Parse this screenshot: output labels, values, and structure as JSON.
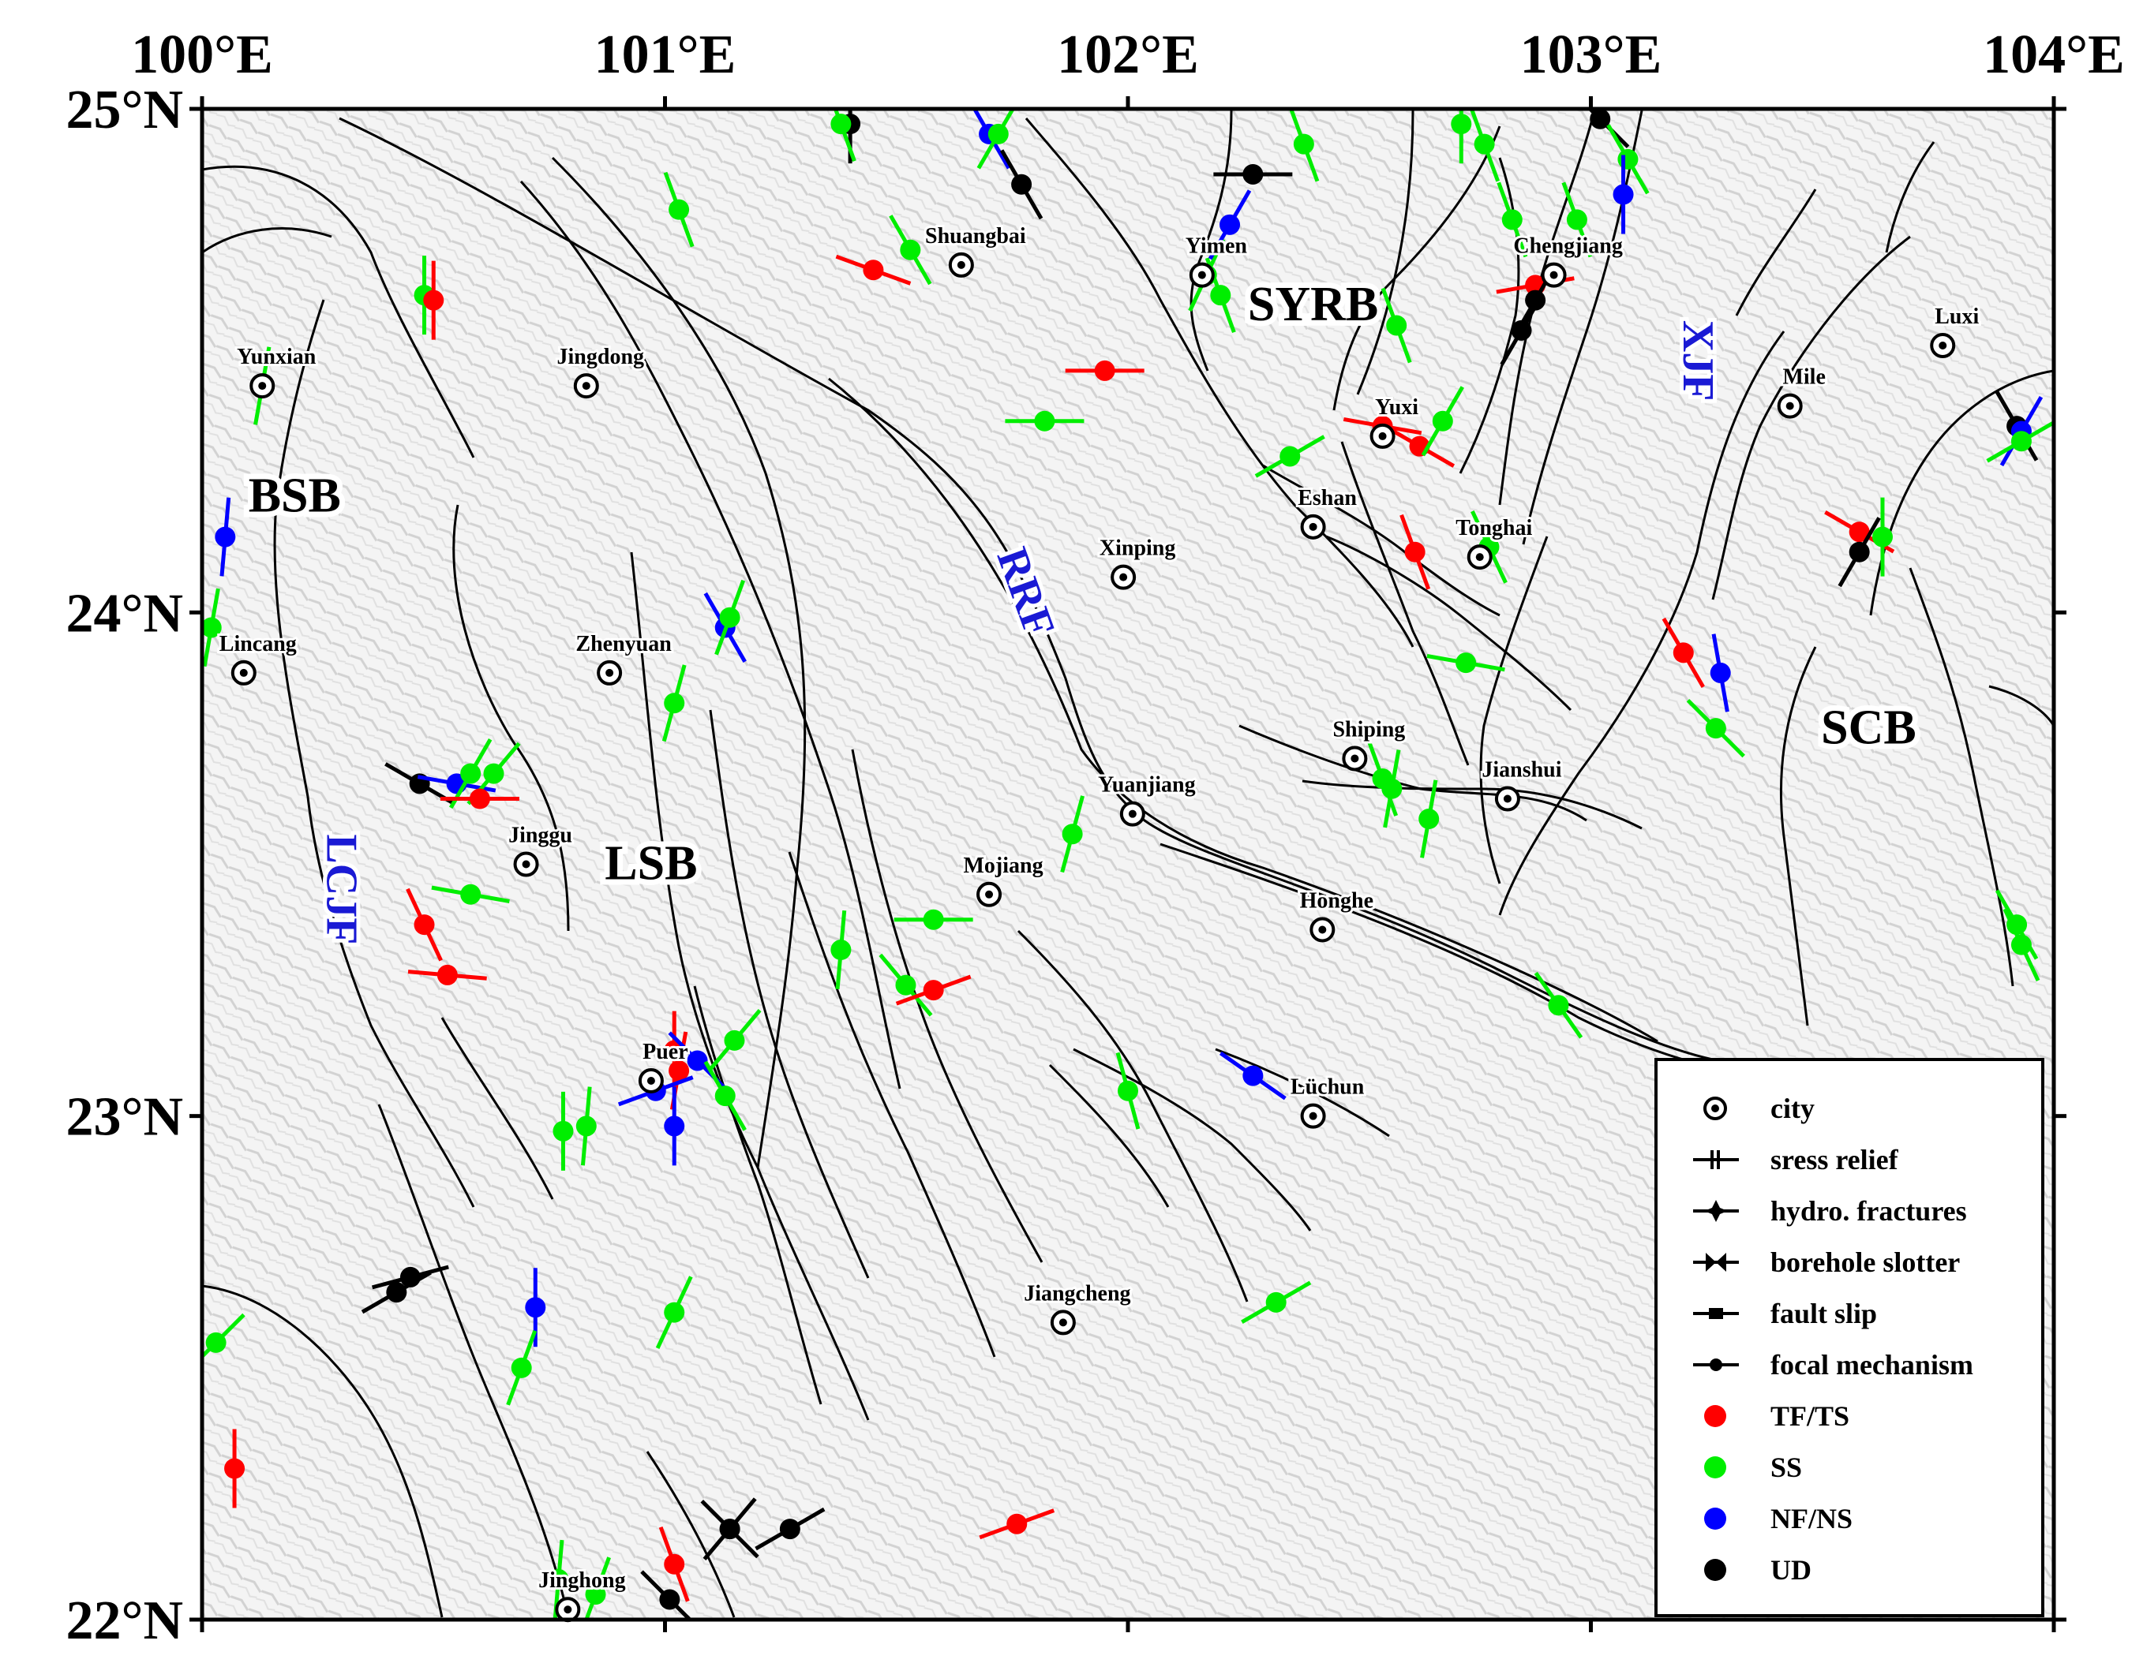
{
  "axes": {
    "x_ticks": [
      {
        "lon": 100,
        "label": "100°E"
      },
      {
        "lon": 101,
        "label": "101°E"
      },
      {
        "lon": 102,
        "label": "102°E"
      },
      {
        "lon": 103,
        "label": "103°E"
      },
      {
        "lon": 104,
        "label": "104°E"
      }
    ],
    "y_ticks": [
      {
        "lat": 25,
        "label": "25°N"
      },
      {
        "lat": 24,
        "label": "24°N"
      },
      {
        "lat": 23,
        "label": "23°N"
      },
      {
        "lat": 22,
        "label": "22°N"
      }
    ],
    "lon_range": [
      100,
      104
    ],
    "lat_range": [
      22,
      25
    ]
  },
  "cities": [
    {
      "name": "Shuangbai",
      "lon": 101.64,
      "lat": 24.69
    },
    {
      "name": "Yimen",
      "lon": 102.16,
      "lat": 24.67
    },
    {
      "name": "Chengjiang",
      "lon": 102.92,
      "lat": 24.67
    },
    {
      "name": "Yunxian",
      "lon": 100.13,
      "lat": 24.45
    },
    {
      "name": "Jingdong",
      "lon": 100.83,
      "lat": 24.45
    },
    {
      "name": "Luxi",
      "lon": 103.76,
      "lat": 24.53
    },
    {
      "name": "Mile",
      "lon": 103.43,
      "lat": 24.41
    },
    {
      "name": "Yuxi",
      "lon": 102.55,
      "lat": 24.35
    },
    {
      "name": "Eshan",
      "lon": 102.4,
      "lat": 24.17
    },
    {
      "name": "Tonghai",
      "lon": 102.76,
      "lat": 24.11
    },
    {
      "name": "Xinping",
      "lon": 101.99,
      "lat": 24.07
    },
    {
      "name": "Lincang",
      "lon": 100.09,
      "lat": 23.88
    },
    {
      "name": "Zhenyuan",
      "lon": 100.88,
      "lat": 23.88
    },
    {
      "name": "Shiping",
      "lon": 102.49,
      "lat": 23.71
    },
    {
      "name": "Jianshui",
      "lon": 102.82,
      "lat": 23.63
    },
    {
      "name": "Yuanjiang",
      "lon": 102.01,
      "lat": 23.6
    },
    {
      "name": "Jinggu",
      "lon": 100.7,
      "lat": 23.5
    },
    {
      "name": "Mojiang",
      "lon": 101.7,
      "lat": 23.44
    },
    {
      "name": "Honghe",
      "lon": 102.42,
      "lat": 23.37
    },
    {
      "name": "Puer",
      "lon": 100.97,
      "lat": 23.07
    },
    {
      "name": "Lüchun",
      "lon": 102.4,
      "lat": 23.0
    },
    {
      "name": "Jiangcheng",
      "lon": 101.86,
      "lat": 22.59
    },
    {
      "name": "Jinghong",
      "lon": 100.79,
      "lat": 22.02
    }
  ],
  "regions": [
    {
      "name": "SYRB",
      "lon": 102.4,
      "lat": 24.58
    },
    {
      "name": "BSB",
      "lon": 100.2,
      "lat": 24.2
    },
    {
      "name": "LSB",
      "lon": 100.97,
      "lat": 23.47
    },
    {
      "name": "SCB",
      "lon": 103.6,
      "lat": 23.74
    }
  ],
  "fault_labels": [
    {
      "name": "XJF",
      "lon": 103.2,
      "lat": 24.5,
      "angle": 90
    },
    {
      "name": "RRF",
      "lon": 101.75,
      "lat": 24.03,
      "angle": 70
    },
    {
      "name": "LCJF",
      "lon": 100.27,
      "lat": 23.45,
      "angle": 90
    }
  ],
  "colors": {
    "TF/TS": "#ff0000",
    "SS": "#00ee00",
    "NF/NS": "#0000ff",
    "UD": "#000000"
  },
  "stress_symbols": [
    {
      "lon": 100.13,
      "lat": 24.45,
      "az": 10,
      "type": "SS"
    },
    {
      "lon": 100.05,
      "lat": 24.15,
      "az": 5,
      "type": "NF/NS"
    },
    {
      "lon": 100.02,
      "lat": 23.97,
      "az": 10,
      "type": "SS"
    },
    {
      "lon": 100.03,
      "lat": 22.55,
      "az": 45,
      "type": "SS"
    },
    {
      "lon": 100.07,
      "lat": 22.3,
      "az": 0,
      "type": "TF/TS"
    },
    {
      "lon": 100.48,
      "lat": 24.63,
      "az": 0,
      "type": "SS"
    },
    {
      "lon": 100.5,
      "lat": 24.62,
      "az": 0,
      "type": "TF/TS"
    },
    {
      "lon": 100.47,
      "lat": 23.66,
      "az": 120,
      "type": "UD"
    },
    {
      "lon": 100.55,
      "lat": 23.66,
      "az": 100,
      "type": "NF/NS"
    },
    {
      "lon": 100.58,
      "lat": 23.68,
      "az": 30,
      "type": "SS"
    },
    {
      "lon": 100.63,
      "lat": 23.68,
      "az": 40,
      "type": "SS"
    },
    {
      "lon": 100.6,
      "lat": 23.63,
      "az": 90,
      "type": "TF/TS"
    },
    {
      "lon": 100.58,
      "lat": 23.44,
      "az": 100,
      "type": "SS"
    },
    {
      "lon": 100.48,
      "lat": 23.38,
      "az": 155,
      "type": "TF/TS"
    },
    {
      "lon": 100.53,
      "lat": 23.28,
      "az": 95,
      "type": "TF/TS"
    },
    {
      "lon": 100.42,
      "lat": 22.65,
      "az": 60,
      "type": "UD"
    },
    {
      "lon": 100.45,
      "lat": 22.68,
      "az": 75,
      "type": "UD"
    },
    {
      "lon": 100.72,
      "lat": 22.62,
      "az": 0,
      "type": "NF/NS"
    },
    {
      "lon": 100.69,
      "lat": 22.5,
      "az": 20,
      "type": "SS"
    },
    {
      "lon": 100.78,
      "lat": 22.97,
      "az": 0,
      "type": "SS"
    },
    {
      "lon": 100.83,
      "lat": 22.98,
      "az": 5,
      "type": "SS"
    },
    {
      "lon": 100.77,
      "lat": 22.08,
      "az": 5,
      "type": "SS"
    },
    {
      "lon": 100.85,
      "lat": 22.05,
      "az": 20,
      "type": "SS"
    },
    {
      "lon": 101.03,
      "lat": 24.8,
      "az": 160,
      "type": "SS"
    },
    {
      "lon": 101.02,
      "lat": 23.13,
      "az": 0,
      "type": "TF/TS"
    },
    {
      "lon": 101.03,
      "lat": 23.09,
      "az": 10,
      "type": "TF/TS"
    },
    {
      "lon": 100.98,
      "lat": 23.05,
      "az": 70,
      "type": "NF/NS"
    },
    {
      "lon": 101.07,
      "lat": 23.11,
      "az": 135,
      "type": "NF/NS"
    },
    {
      "lon": 101.02,
      "lat": 22.98,
      "az": 0,
      "type": "NF/NS"
    },
    {
      "lon": 101.13,
      "lat": 23.04,
      "az": 150,
      "type": "SS"
    },
    {
      "lon": 101.15,
      "lat": 23.15,
      "az": 40,
      "type": "SS"
    },
    {
      "lon": 101.13,
      "lat": 23.97,
      "az": 150,
      "type": "NF/NS"
    },
    {
      "lon": 101.14,
      "lat": 23.99,
      "az": 20,
      "type": "SS"
    },
    {
      "lon": 101.02,
      "lat": 23.82,
      "az": 15,
      "type": "SS"
    },
    {
      "lon": 101.02,
      "lat": 22.61,
      "az": 25,
      "type": "SS"
    },
    {
      "lon": 101.02,
      "lat": 22.11,
      "az": 160,
      "type": "TF/TS"
    },
    {
      "lon": 101.01,
      "lat": 22.04,
      "az": 135,
      "type": "UD"
    },
    {
      "lon": 101.14,
      "lat": 22.18,
      "az": 40,
      "type": "UD"
    },
    {
      "lon": 101.14,
      "lat": 22.18,
      "az": 135,
      "type": "UD"
    },
    {
      "lon": 101.27,
      "lat": 22.18,
      "az": 60,
      "type": "UD"
    },
    {
      "lon": 101.4,
      "lat": 24.97,
      "az": 0,
      "type": "UD"
    },
    {
      "lon": 101.38,
      "lat": 24.97,
      "az": 160,
      "type": "SS"
    },
    {
      "lon": 101.45,
      "lat": 24.68,
      "az": 110,
      "type": "TF/TS"
    },
    {
      "lon": 101.53,
      "lat": 24.72,
      "az": 150,
      "type": "SS"
    },
    {
      "lon": 101.38,
      "lat": 23.33,
      "az": 5,
      "type": "SS"
    },
    {
      "lon": 101.52,
      "lat": 23.26,
      "az": 140,
      "type": "SS"
    },
    {
      "lon": 101.58,
      "lat": 23.39,
      "az": 90,
      "type": "SS"
    },
    {
      "lon": 101.58,
      "lat": 23.25,
      "az": 70,
      "type": "TF/TS"
    },
    {
      "lon": 101.76,
      "lat": 22.19,
      "az": 70,
      "type": "TF/TS"
    },
    {
      "lon": 101.7,
      "lat": 24.95,
      "az": 150,
      "type": "NF/NS"
    },
    {
      "lon": 101.72,
      "lat": 24.95,
      "az": 30,
      "type": "SS"
    },
    {
      "lon": 101.77,
      "lat": 24.85,
      "az": 150,
      "type": "UD"
    },
    {
      "lon": 101.82,
      "lat": 24.38,
      "az": 90,
      "type": "SS"
    },
    {
      "lon": 101.95,
      "lat": 24.48,
      "az": 90,
      "type": "TF/TS"
    },
    {
      "lon": 101.88,
      "lat": 23.56,
      "az": 15,
      "type": "SS"
    },
    {
      "lon": 102.0,
      "lat": 23.05,
      "az": 165,
      "type": "SS"
    },
    {
      "lon": 102.17,
      "lat": 24.67,
      "az": 25,
      "type": "SS"
    },
    {
      "lon": 102.2,
      "lat": 24.63,
      "az": 160,
      "type": "SS"
    },
    {
      "lon": 102.22,
      "lat": 24.77,
      "az": 30,
      "type": "NF/NS"
    },
    {
      "lon": 102.27,
      "lat": 24.87,
      "az": 90,
      "type": "UD"
    },
    {
      "lon": 102.38,
      "lat": 24.93,
      "az": 160,
      "type": "SS"
    },
    {
      "lon": 102.27,
      "lat": 23.08,
      "az": 125,
      "type": "NF/NS"
    },
    {
      "lon": 102.32,
      "lat": 22.63,
      "az": 60,
      "type": "SS"
    },
    {
      "lon": 102.35,
      "lat": 24.31,
      "az": 60,
      "type": "SS"
    },
    {
      "lon": 102.55,
      "lat": 24.37,
      "az": 100,
      "type": "TF/TS"
    },
    {
      "lon": 102.63,
      "lat": 24.33,
      "az": 120,
      "type": "TF/TS"
    },
    {
      "lon": 102.68,
      "lat": 24.38,
      "az": 30,
      "type": "SS"
    },
    {
      "lon": 102.58,
      "lat": 24.57,
      "az": 160,
      "type": "SS"
    },
    {
      "lon": 102.62,
      "lat": 24.12,
      "az": 160,
      "type": "TF/TS"
    },
    {
      "lon": 102.55,
      "lat": 23.67,
      "az": 160,
      "type": "SS"
    },
    {
      "lon": 102.57,
      "lat": 23.65,
      "az": 10,
      "type": "SS"
    },
    {
      "lon": 102.65,
      "lat": 23.59,
      "az": 10,
      "type": "SS"
    },
    {
      "lon": 102.72,
      "lat": 24.97,
      "az": 0,
      "type": "SS"
    },
    {
      "lon": 102.77,
      "lat": 24.93,
      "az": 160,
      "type": "SS"
    },
    {
      "lon": 102.83,
      "lat": 24.78,
      "az": 160,
      "type": "SS"
    },
    {
      "lon": 102.73,
      "lat": 23.9,
      "az": 100,
      "type": "SS"
    },
    {
      "lon": 102.78,
      "lat": 24.13,
      "az": 155,
      "type": "SS"
    },
    {
      "lon": 102.88,
      "lat": 24.65,
      "az": 80,
      "type": "TF/TS"
    },
    {
      "lon": 102.88,
      "lat": 24.62,
      "az": 30,
      "type": "UD"
    },
    {
      "lon": 102.85,
      "lat": 24.56,
      "az": 30,
      "type": "UD"
    },
    {
      "lon": 102.93,
      "lat": 23.22,
      "az": 145,
      "type": "SS"
    },
    {
      "lon": 102.97,
      "lat": 24.78,
      "az": 160,
      "type": "SS"
    },
    {
      "lon": 103.02,
      "lat": 24.98,
      "az": 135,
      "type": "UD"
    },
    {
      "lon": 103.08,
      "lat": 24.9,
      "az": 150,
      "type": "SS"
    },
    {
      "lon": 103.07,
      "lat": 24.83,
      "az": 0,
      "type": "NF/NS"
    },
    {
      "lon": 103.2,
      "lat": 23.92,
      "az": 150,
      "type": "TF/TS"
    },
    {
      "lon": 103.28,
      "lat": 23.88,
      "az": 170,
      "type": "NF/NS"
    },
    {
      "lon": 103.27,
      "lat": 23.77,
      "az": 135,
      "type": "SS"
    },
    {
      "lon": 103.58,
      "lat": 24.16,
      "az": 120,
      "type": "TF/TS"
    },
    {
      "lon": 103.63,
      "lat": 24.15,
      "az": 0,
      "type": "SS"
    },
    {
      "lon": 103.58,
      "lat": 24.12,
      "az": 30,
      "type": "UD"
    },
    {
      "lon": 103.92,
      "lat": 24.37,
      "az": 150,
      "type": "UD"
    },
    {
      "lon": 103.93,
      "lat": 24.36,
      "az": 30,
      "type": "NF/NS"
    },
    {
      "lon": 103.93,
      "lat": 24.34,
      "az": 60,
      "type": "SS"
    },
    {
      "lon": 103.92,
      "lat": 23.38,
      "az": 150,
      "type": "SS"
    },
    {
      "lon": 103.93,
      "lat": 23.34,
      "az": 155,
      "type": "SS"
    }
  ],
  "legend": {
    "items": [
      {
        "label": "city",
        "symbol": "city"
      },
      {
        "label": "sress relief",
        "symbol": "stress-relief"
      },
      {
        "label": "hydro. fractures",
        "symbol": "hydro"
      },
      {
        "label": "borehole slotter",
        "symbol": "borehole"
      },
      {
        "label": "fault slip",
        "symbol": "fault-slip"
      },
      {
        "label": "focal mechanism",
        "symbol": "focal"
      },
      {
        "label": "TF/TS",
        "symbol": "dot",
        "color": "#ff0000"
      },
      {
        "label": "SS",
        "symbol": "dot",
        "color": "#00ee00"
      },
      {
        "label": "NF/NS",
        "symbol": "dot",
        "color": "#0000ff"
      },
      {
        "label": "UD",
        "symbol": "dot",
        "color": "#000000"
      }
    ]
  }
}
